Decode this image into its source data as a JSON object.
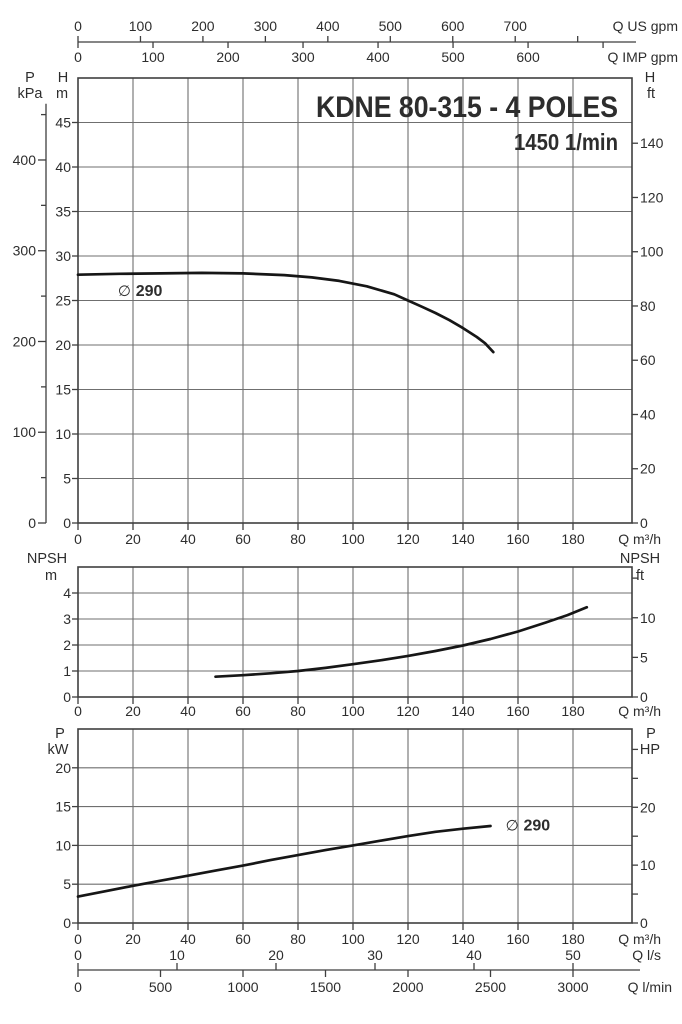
{
  "colors": {
    "background": "#ffffff",
    "curve": "#161616",
    "grid": "#6f6f6f",
    "frame": "#3f3f3f",
    "text": "#2d2d2d"
  },
  "title": "KDNE 80-315 - 4 POLES",
  "subtitle": "1450 1/min",
  "chart_data": [
    {
      "name": "head-flow",
      "type": "line",
      "title": "KDNE 80-315 - 4 POLES",
      "subtitle": "1450 1/min",
      "x": {
        "label": "Q m³/h",
        "ticks": [
          0,
          20,
          40,
          60,
          80,
          100,
          120,
          140,
          160,
          180
        ],
        "range": [
          0,
          201
        ]
      },
      "x_top": [
        {
          "label": "Q US gpm",
          "ticks": [
            0,
            100,
            200,
            300,
            400,
            500,
            600,
            700
          ],
          "extra_ticks": [
            800
          ]
        },
        {
          "label": "Q IMP gpm",
          "ticks": [
            0,
            100,
            200,
            300,
            400,
            500,
            600
          ],
          "extra_ticks": [
            700
          ]
        }
      ],
      "y_left": {
        "label": [
          "H",
          "m"
        ],
        "ticks": [
          0,
          5,
          10,
          15,
          20,
          25,
          30,
          35,
          40,
          45
        ],
        "range": [
          0,
          50
        ]
      },
      "y_far_left": {
        "label": [
          "P",
          "kPa"
        ],
        "ticks": [
          0,
          100,
          200,
          300,
          400
        ],
        "minor_ticks": [
          50,
          150,
          250,
          350,
          450
        ]
      },
      "y_right": {
        "label": [
          "H",
          "ft"
        ],
        "ticks": [
          0,
          20,
          40,
          60,
          80,
          100,
          120,
          140
        ],
        "extra_ticks": []
      },
      "series": [
        {
          "label": "∅ 290",
          "label_symbol": "∅",
          "label_value": "290",
          "label_pos": [
            14.5,
            25.5
          ],
          "points": [
            [
              0,
              27.9
            ],
            [
              15,
              28.0
            ],
            [
              30,
              28.05
            ],
            [
              45,
              28.1
            ],
            [
              60,
              28.05
            ],
            [
              75,
              27.85
            ],
            [
              85,
              27.6
            ],
            [
              95,
              27.2
            ],
            [
              105,
              26.6
            ],
            [
              115,
              25.7
            ],
            [
              120,
              25.0
            ],
            [
              125,
              24.3
            ],
            [
              130,
              23.6
            ],
            [
              135,
              22.8
            ],
            [
              140,
              21.9
            ],
            [
              145,
              20.9
            ],
            [
              148,
              20.2
            ],
            [
              151,
              19.2
            ]
          ]
        }
      ]
    },
    {
      "name": "npsh-flow",
      "type": "line",
      "x": {
        "label": "Q m³/h",
        "ticks": [
          0,
          20,
          40,
          60,
          80,
          100,
          120,
          140,
          160,
          180
        ],
        "range": [
          0,
          201
        ]
      },
      "y_left": {
        "label": [
          "NPSH",
          "m"
        ],
        "ticks": [
          0,
          1,
          2,
          3,
          4
        ],
        "range": [
          0,
          5
        ]
      },
      "y_right": {
        "label": [
          "NPSH",
          "ft"
        ],
        "ticks": [
          0,
          5,
          10
        ],
        "extra_ticks": [
          15
        ]
      },
      "series": [
        {
          "points": [
            [
              50,
              0.78
            ],
            [
              60,
              0.84
            ],
            [
              70,
              0.91
            ],
            [
              80,
              1.0
            ],
            [
              90,
              1.12
            ],
            [
              100,
              1.26
            ],
            [
              110,
              1.41
            ],
            [
              120,
              1.58
            ],
            [
              130,
              1.77
            ],
            [
              140,
              1.98
            ],
            [
              150,
              2.23
            ],
            [
              160,
              2.52
            ],
            [
              170,
              2.86
            ],
            [
              178,
              3.15
            ],
            [
              185,
              3.45
            ]
          ]
        }
      ]
    },
    {
      "name": "power-flow",
      "type": "line",
      "x": {
        "label": "Q m³/h",
        "ticks": [
          0,
          20,
          40,
          60,
          80,
          100,
          120,
          140,
          160,
          180
        ],
        "range": [
          0,
          201
        ]
      },
      "x_bottom": [
        {
          "label": "Q l/s",
          "ticks": [
            0,
            10,
            20,
            30,
            40,
            50
          ]
        },
        {
          "label": "Q l/min",
          "ticks": [
            0,
            500,
            1000,
            1500,
            2000,
            2500,
            3000
          ]
        }
      ],
      "y_left": {
        "label": [
          "P",
          "kW"
        ],
        "ticks": [
          0,
          5,
          10,
          15,
          20
        ],
        "range": [
          0,
          25
        ]
      },
      "y_right": {
        "label": [
          "P",
          "HP"
        ],
        "ticks": [
          0,
          10,
          20
        ],
        "extra_ticks": [
          5,
          15,
          25,
          30
        ]
      },
      "series": [
        {
          "label": "∅ 290",
          "label_symbol": "∅",
          "label_value": "290",
          "label_pos": [
            155.5,
            11.9
          ],
          "points": [
            [
              0,
              3.4
            ],
            [
              10,
              4.1
            ],
            [
              20,
              4.8
            ],
            [
              30,
              5.45
            ],
            [
              40,
              6.1
            ],
            [
              50,
              6.75
            ],
            [
              60,
              7.4
            ],
            [
              70,
              8.1
            ],
            [
              80,
              8.75
            ],
            [
              90,
              9.4
            ],
            [
              100,
              10.0
            ],
            [
              110,
              10.6
            ],
            [
              120,
              11.2
            ],
            [
              130,
              11.75
            ],
            [
              140,
              12.15
            ],
            [
              150,
              12.5
            ]
          ]
        }
      ]
    }
  ]
}
